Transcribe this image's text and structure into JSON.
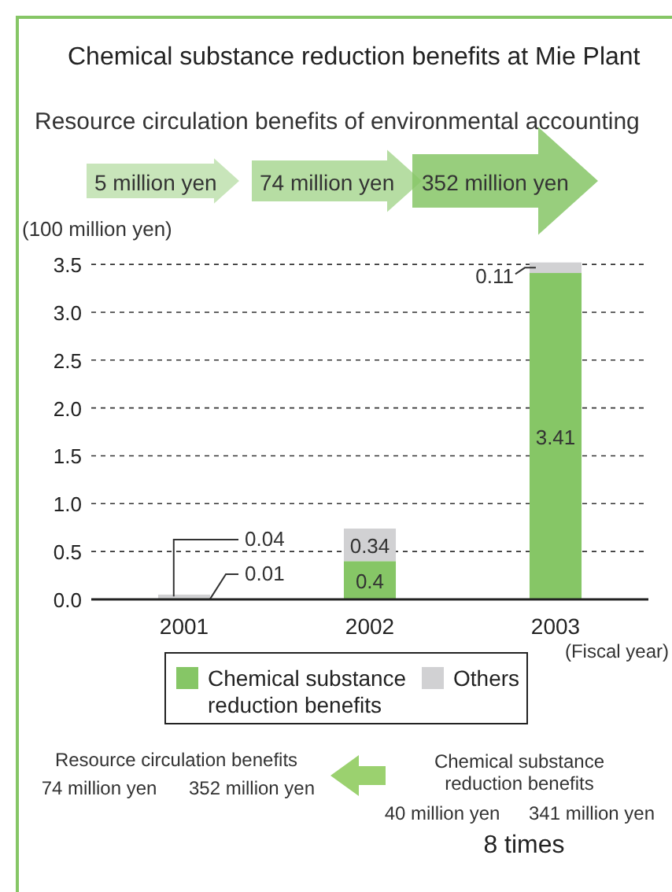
{
  "chart_data": {
    "type": "bar",
    "stacked": true,
    "title": "Chemical substance reduction benefits at Mie Plant",
    "subtitle": "Resource circulation benefits of environmental accounting",
    "ylabel": "(100 million yen)",
    "xlabel": "(Fiscal year)",
    "categories": [
      "2001",
      "2002",
      "2003"
    ],
    "series": [
      {
        "name": "Chemical substance reduction benefits",
        "color": "#86c666",
        "values": [
          0.01,
          0.4,
          3.41
        ]
      },
      {
        "name": "Others",
        "color": "#d1d1d3",
        "values": [
          0.04,
          0.34,
          0.11
        ]
      }
    ],
    "ylim": [
      0,
      3.55
    ],
    "yticks": [
      {
        "value": 0,
        "label": "0.0"
      },
      {
        "value": 0.5,
        "label": "0.5"
      },
      {
        "value": 1,
        "label": "1.0"
      },
      {
        "value": 1.5,
        "label": "1.5"
      },
      {
        "value": 2,
        "label": "2.0"
      },
      {
        "value": 2.5,
        "label": "2.5"
      },
      {
        "value": 3,
        "label": "3.0"
      },
      {
        "value": 3.5,
        "label": "3.5"
      }
    ],
    "grid": "y",
    "data_labels": true,
    "legend": "bottom",
    "annotations": [
      "5 million yen",
      "74 million yen",
      "352 million yen",
      "Resource circulation benefits",
      "74 million yen",
      "352 million yen",
      "Chemical substance reduction benefits",
      "40 million yen",
      "341 million yen",
      "8 times"
    ]
  }
}
